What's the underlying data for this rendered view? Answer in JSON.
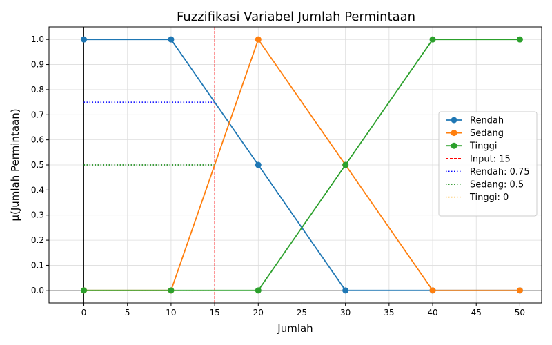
{
  "chart_data": {
    "type": "line",
    "title": "Fuzzifikasi Variabel Jumlah Permintaan",
    "xlabel": "Jumlah",
    "ylabel": "μ(Jumlah Permintaan)",
    "xlim": [
      -4,
      52.5
    ],
    "ylim": [
      -0.05,
      1.05
    ],
    "xticks": [
      0,
      5,
      10,
      15,
      20,
      25,
      30,
      35,
      40,
      45,
      50
    ],
    "yticks": [
      0.0,
      0.1,
      0.2,
      0.3,
      0.4,
      0.5,
      0.6,
      0.7,
      0.8,
      0.9,
      1.0
    ],
    "grid": true,
    "legend_position": "center-right",
    "series": [
      {
        "name": "Rendah",
        "color": "#1f77b4",
        "x": [
          0,
          10,
          20,
          30,
          40,
          50
        ],
        "y": [
          1,
          1,
          0.5,
          0,
          0,
          0
        ]
      },
      {
        "name": "Sedang",
        "color": "#ff7f0e",
        "x": [
          0,
          10,
          20,
          30,
          40,
          50
        ],
        "y": [
          0,
          0,
          1,
          0.5,
          0,
          0
        ]
      },
      {
        "name": "Tinggi",
        "color": "#2ca02c",
        "x": [
          0,
          10,
          20,
          30,
          40,
          50
        ],
        "y": [
          0,
          0,
          0,
          0.5,
          1,
          1
        ]
      }
    ],
    "input_line": {
      "name": "Input: 15",
      "x": 15,
      "color": "#ff0000"
    },
    "membership_lines": [
      {
        "name": "Rendah: 0.75",
        "y": 0.75,
        "color": "#0000ff"
      },
      {
        "name": "Sedang: 0.5",
        "y": 0.5,
        "color": "#008000"
      },
      {
        "name": "Tinggi: 0",
        "y": 0,
        "color": "#ffa500"
      }
    ]
  }
}
